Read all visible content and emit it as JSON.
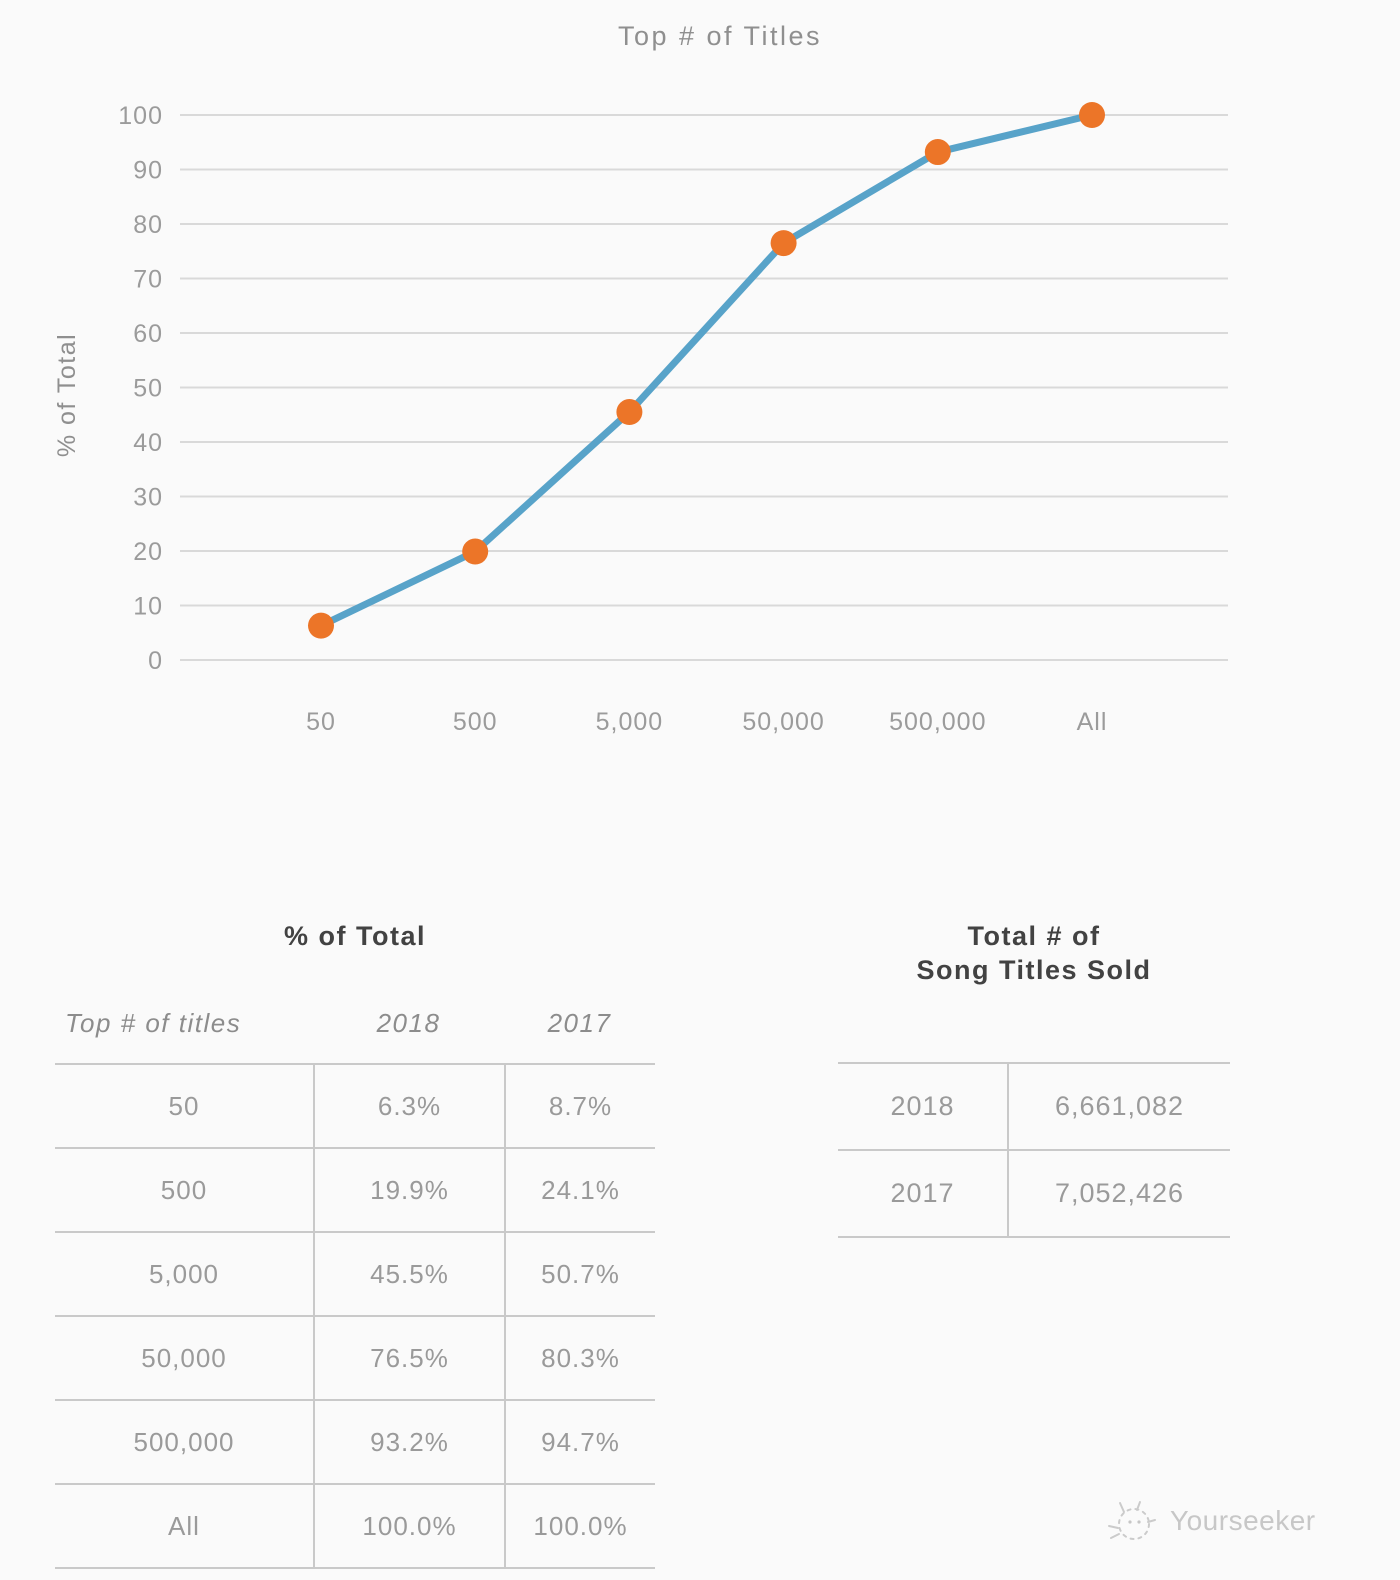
{
  "chart_data": {
    "type": "line",
    "title": "Top # of Titles",
    "ylabel": "% of Total",
    "xlabel": "",
    "categories": [
      "50",
      "500",
      "5,000",
      "50,000",
      "500,000",
      "All"
    ],
    "series": [
      {
        "name": "2018",
        "values": [
          6.3,
          19.9,
          45.5,
          76.5,
          93.2,
          100.0
        ]
      }
    ],
    "ylim": [
      0,
      100
    ],
    "ytick_step": 10,
    "grid": "horizontal-only",
    "legend": "none",
    "line_color": "#58a3c9",
    "marker_color": "#ec7528",
    "grid_color": "#d9d9d9",
    "tick_color": "#9b9b9b",
    "title_color": "#8f8f8f"
  },
  "percent_table": {
    "title": "% of Total",
    "columns": [
      "Top # of titles",
      "2018",
      "2017"
    ],
    "rows": [
      [
        "50",
        "6.3%",
        "8.7%"
      ],
      [
        "500",
        "19.9%",
        "24.1%"
      ],
      [
        "5,000",
        "45.5%",
        "50.7%"
      ],
      [
        "50,000",
        "76.5%",
        "80.3%"
      ],
      [
        "500,000",
        "93.2%",
        "94.7%"
      ],
      [
        "All",
        "100.0%",
        "100.0%"
      ]
    ]
  },
  "totals_table": {
    "title_lines": [
      "Total # of",
      "Song Titles Sold"
    ],
    "rows": [
      [
        "2018",
        "6,661,082"
      ],
      [
        "2017",
        "7,052,426"
      ]
    ]
  },
  "watermark": {
    "brand": "Yourseeker"
  }
}
